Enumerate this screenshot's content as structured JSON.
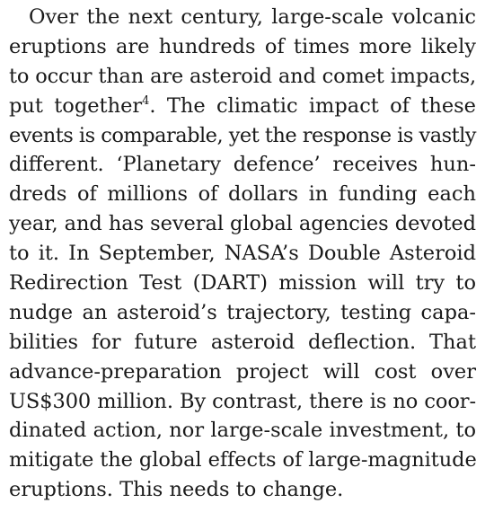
{
  "article": {
    "paragraph_lines": [
      "Over the next century, large-scale volcanic",
      "eruptions are hundreds of times more likely",
      "to occur than are asteroid and comet impacts,",
      "put together",
      ". The climatic impact of these",
      "events is comparable, yet the response is vastly",
      "different. ‘Planetary defence’ receives hun-",
      "dreds of millions of dollars in funding each",
      "year, and has several global agencies devoted",
      "to it. In September, NASA’s Double Asteroid",
      "Redirection Test (DART) mission will try to",
      "nudge an asteroid’s trajectory, testing capa-",
      "bilities for future asteroid deflection. That",
      "advance-preparation project will cost over",
      "US$300 million. By contrast, there is no coor-",
      "dinated action, nor large-scale investment, to",
      "mitigate the global effects of large-magnitude",
      "eruptions. This needs to change."
    ],
    "citation_number": "4"
  }
}
